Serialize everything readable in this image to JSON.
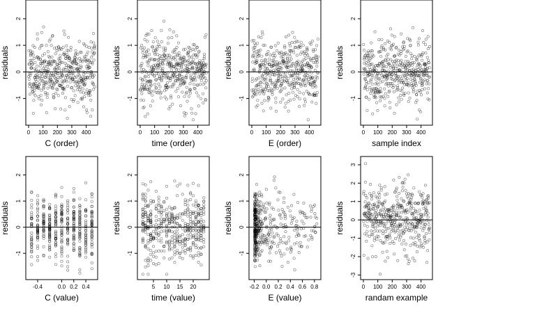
{
  "chart_data": [
    {
      "type": "scatter",
      "xlabel": "C (order)",
      "ylabel": "residuals",
      "xlim": [
        0,
        460
      ],
      "ylim": [
        -1.9,
        2.6
      ],
      "xticks": [
        0,
        100,
        200,
        300,
        400
      ],
      "yticks": [
        -1,
        0,
        1,
        2
      ],
      "hline": 0,
      "series": [
        {
          "x_kind": "order",
          "n": 460,
          "seed": 11,
          "sd": 0.62
        }
      ]
    },
    {
      "type": "scatter",
      "xlabel": "time (order)",
      "ylabel": "residuals",
      "xlim": [
        0,
        460
      ],
      "ylim": [
        -1.9,
        2.6
      ],
      "xticks": [
        0,
        100,
        200,
        300,
        400
      ],
      "yticks": [
        -1,
        0,
        1,
        2
      ],
      "hline": 0,
      "series": [
        {
          "x_kind": "order",
          "n": 460,
          "seed": 23,
          "sd": 0.62
        }
      ]
    },
    {
      "type": "scatter",
      "xlabel": "E (order)",
      "ylabel": "residuals",
      "xlim": [
        0,
        460
      ],
      "ylim": [
        -1.9,
        2.6
      ],
      "xticks": [
        0,
        100,
        200,
        300,
        400
      ],
      "yticks": [
        -1,
        0,
        1,
        2
      ],
      "hline": 0,
      "series": [
        {
          "x_kind": "order",
          "n": 460,
          "seed": 37,
          "sd": 0.62
        }
      ]
    },
    {
      "type": "scatter",
      "xlabel": "sample index",
      "ylabel": "residuals",
      "xlim": [
        0,
        460
      ],
      "ylim": [
        -1.9,
        2.6
      ],
      "xticks": [
        0,
        100,
        200,
        300,
        400
      ],
      "yticks": [
        -1,
        0,
        1,
        2
      ],
      "hline": 0,
      "series": [
        {
          "x_kind": "order",
          "n": 460,
          "seed": 41,
          "sd": 0.62
        }
      ]
    },
    {
      "type": "scatter",
      "xlabel": "C (value)",
      "ylabel": "residuals",
      "xlim": [
        -0.55,
        0.55
      ],
      "ylim": [
        -1.9,
        2.6
      ],
      "xticks": [
        -0.4,
        0.0,
        0.2,
        0.4
      ],
      "xtick_labels": [
        "-0.4",
        "0.0",
        "0.2",
        "0.4"
      ],
      "yticks": [
        -1,
        0,
        1,
        2
      ],
      "hline": 0,
      "series": [
        {
          "x_kind": "levels",
          "levels": [
            -0.5,
            -0.4,
            -0.3,
            -0.2,
            -0.1,
            0.0,
            0.1,
            0.2,
            0.3,
            0.4,
            0.5
          ],
          "n": 460,
          "seed": 53,
          "sd": 0.62
        }
      ]
    },
    {
      "type": "scatter",
      "xlabel": "time (value)",
      "ylabel": "residuals",
      "xlim": [
        0,
        25
      ],
      "ylim": [
        -1.9,
        2.6
      ],
      "xticks": [
        5,
        10,
        15,
        20
      ],
      "yticks": [
        -1,
        0,
        1,
        2
      ],
      "hline": 0,
      "series": [
        {
          "x_kind": "levels",
          "levels": [
            1,
            2,
            3,
            4,
            5,
            6,
            7,
            8,
            9,
            10,
            11,
            12,
            13,
            14,
            15,
            16,
            17,
            18,
            19,
            20,
            21,
            22,
            23,
            24
          ],
          "n": 460,
          "seed": 67,
          "sd": 0.62
        }
      ]
    },
    {
      "type": "scatter",
      "xlabel": "E (value)",
      "ylabel": "residuals",
      "xlim": [
        -0.24,
        0.86
      ],
      "ylim": [
        -1.9,
        2.6
      ],
      "xticks": [
        -0.2,
        0.0,
        0.2,
        0.4,
        0.6,
        0.8
      ],
      "xtick_labels": [
        "-0.2",
        "0.0",
        "0.2",
        "0.4",
        "0.6",
        "0.8"
      ],
      "yticks": [
        -1,
        0,
        1,
        2
      ],
      "hline": 0,
      "series": [
        {
          "x_kind": "skewed",
          "min": -0.19,
          "max": 0.85,
          "n": 460,
          "seed": 79,
          "sd": 0.62
        }
      ]
    },
    {
      "type": "scatter",
      "xlabel": "randam example",
      "ylabel": "residuals",
      "xlim": [
        0,
        460
      ],
      "ylim": [
        -3.1,
        3.3
      ],
      "xticks": [
        0,
        100,
        200,
        300,
        400
      ],
      "yticks": [
        -3,
        -2,
        -1,
        0,
        1,
        2,
        3
      ],
      "hline": 0,
      "series": [
        {
          "x_kind": "order",
          "n": 460,
          "seed": 97,
          "sd": 1.0
        }
      ]
    }
  ]
}
